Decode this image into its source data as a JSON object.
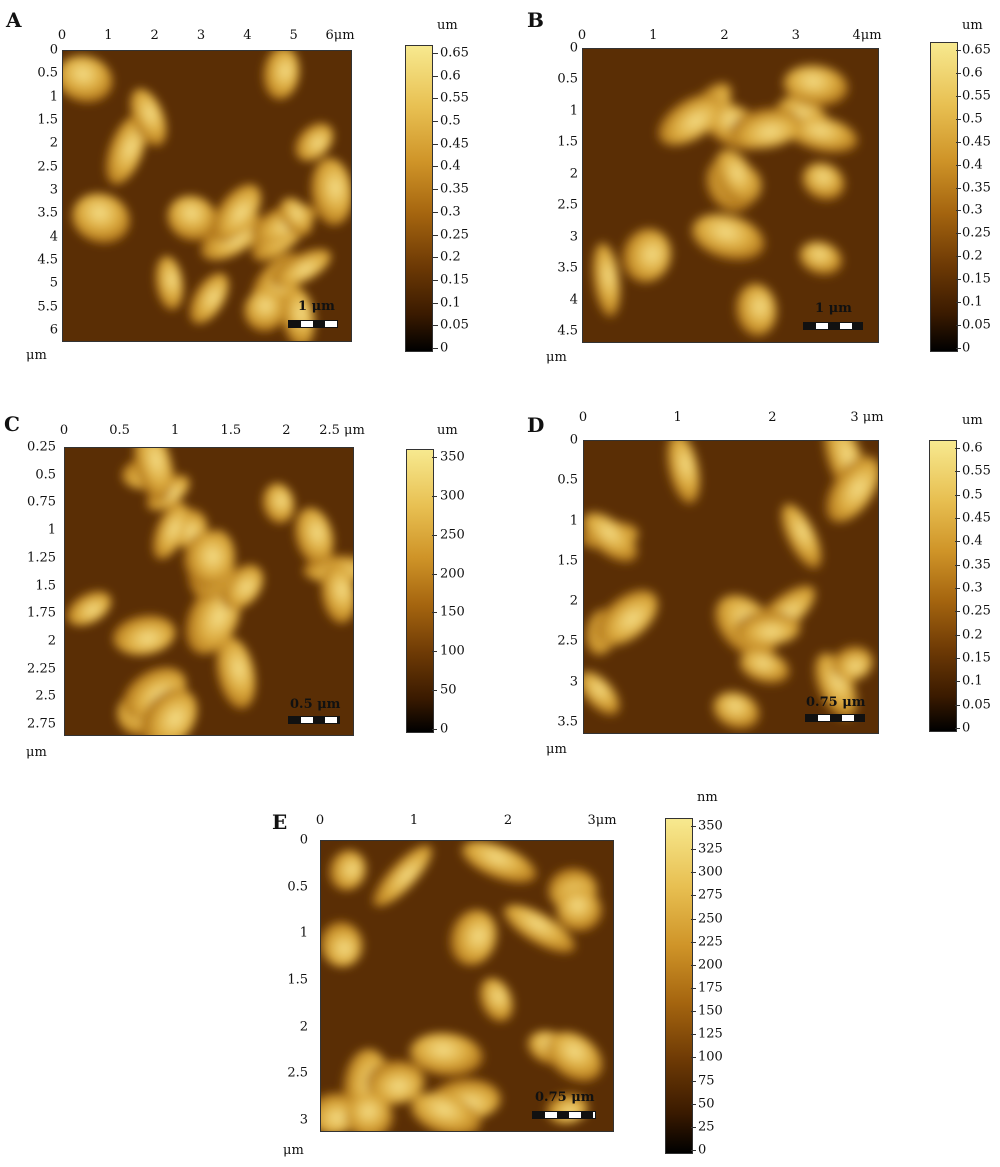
{
  "figure": {
    "panels": [
      {
        "letter": "A",
        "x_ticks": [
          "0",
          "1",
          "2",
          "3",
          "4",
          "5",
          "6μm"
        ],
        "y_ticks": [
          "0",
          "0.5",
          "1",
          "1.5",
          "2",
          "2.5",
          "3",
          "3.5",
          "4",
          "4.5",
          "5",
          "5.5",
          "6"
        ],
        "axis_unit": "μm",
        "scale_bar": "1 μm",
        "colorbar_unit": "um",
        "colorbar_ticks": [
          "0.65",
          "0.6",
          "0.55",
          "0.5",
          "0.45",
          "0.4",
          "0.35",
          "0.3",
          "0.25",
          "0.2",
          "0.15",
          "0.1",
          "0.05",
          "0"
        ]
      },
      {
        "letter": "B",
        "x_ticks": [
          "0",
          "1",
          "2",
          "3",
          "4μm"
        ],
        "y_ticks": [
          "0",
          "0.5",
          "1",
          "1.5",
          "2",
          "2.5",
          "3",
          "3.5",
          "4",
          "4.5"
        ],
        "axis_unit": "μm",
        "scale_bar": "1 μm",
        "colorbar_unit": "um",
        "colorbar_ticks": [
          "0.65",
          "0.6",
          "0.55",
          "0.5",
          "0.45",
          "0.4",
          "0.35",
          "0.3",
          "0.25",
          "0.2",
          "0.15",
          "0.1",
          "0.05",
          "0"
        ]
      },
      {
        "letter": "C",
        "x_ticks": [
          "0",
          "0.5",
          "1",
          "1.5",
          "2",
          "2.5 μm"
        ],
        "y_ticks": [
          "0.25",
          "0.5",
          "0.75",
          "1",
          "1.25",
          "1.5",
          "1.75",
          "2",
          "2.25",
          "2.5",
          "2.75"
        ],
        "axis_unit": "μm",
        "scale_bar": "0.5 μm",
        "colorbar_unit": "um",
        "colorbar_ticks": [
          "350",
          "300",
          "250",
          "200",
          "150",
          "100",
          "50",
          "0"
        ]
      },
      {
        "letter": "D",
        "x_ticks": [
          "0",
          "1",
          "2",
          "3 μm"
        ],
        "y_ticks": [
          "0",
          "0.5",
          "1",
          "1.5",
          "2",
          "2.5",
          "3",
          "3.5"
        ],
        "axis_unit": "μm",
        "scale_bar": "0.75 μm",
        "colorbar_unit": "um",
        "colorbar_ticks": [
          "0.6",
          "0.55",
          "0.5",
          "0.45",
          "0.4",
          "0.35",
          "0.3",
          "0.25",
          "0.2",
          "0.15",
          "0.1",
          "0.05",
          "0"
        ]
      },
      {
        "letter": "E",
        "x_ticks": [
          "0",
          "1",
          "2",
          "3μm"
        ],
        "y_ticks": [
          "0",
          "0.5",
          "1",
          "1.5",
          "2",
          "2.5",
          "3"
        ],
        "axis_unit": "μm",
        "scale_bar": "0.75 μm",
        "colorbar_unit": "nm",
        "colorbar_ticks": [
          "350",
          "325",
          "300",
          "275",
          "250",
          "225",
          "200",
          "175",
          "150",
          "125",
          "100",
          "75",
          "50",
          "25",
          "0"
        ]
      }
    ],
    "colors": {
      "colormap_low": "#000000",
      "colormap_mid": "#a5650f",
      "colormap_high": "#f7e98f"
    }
  }
}
